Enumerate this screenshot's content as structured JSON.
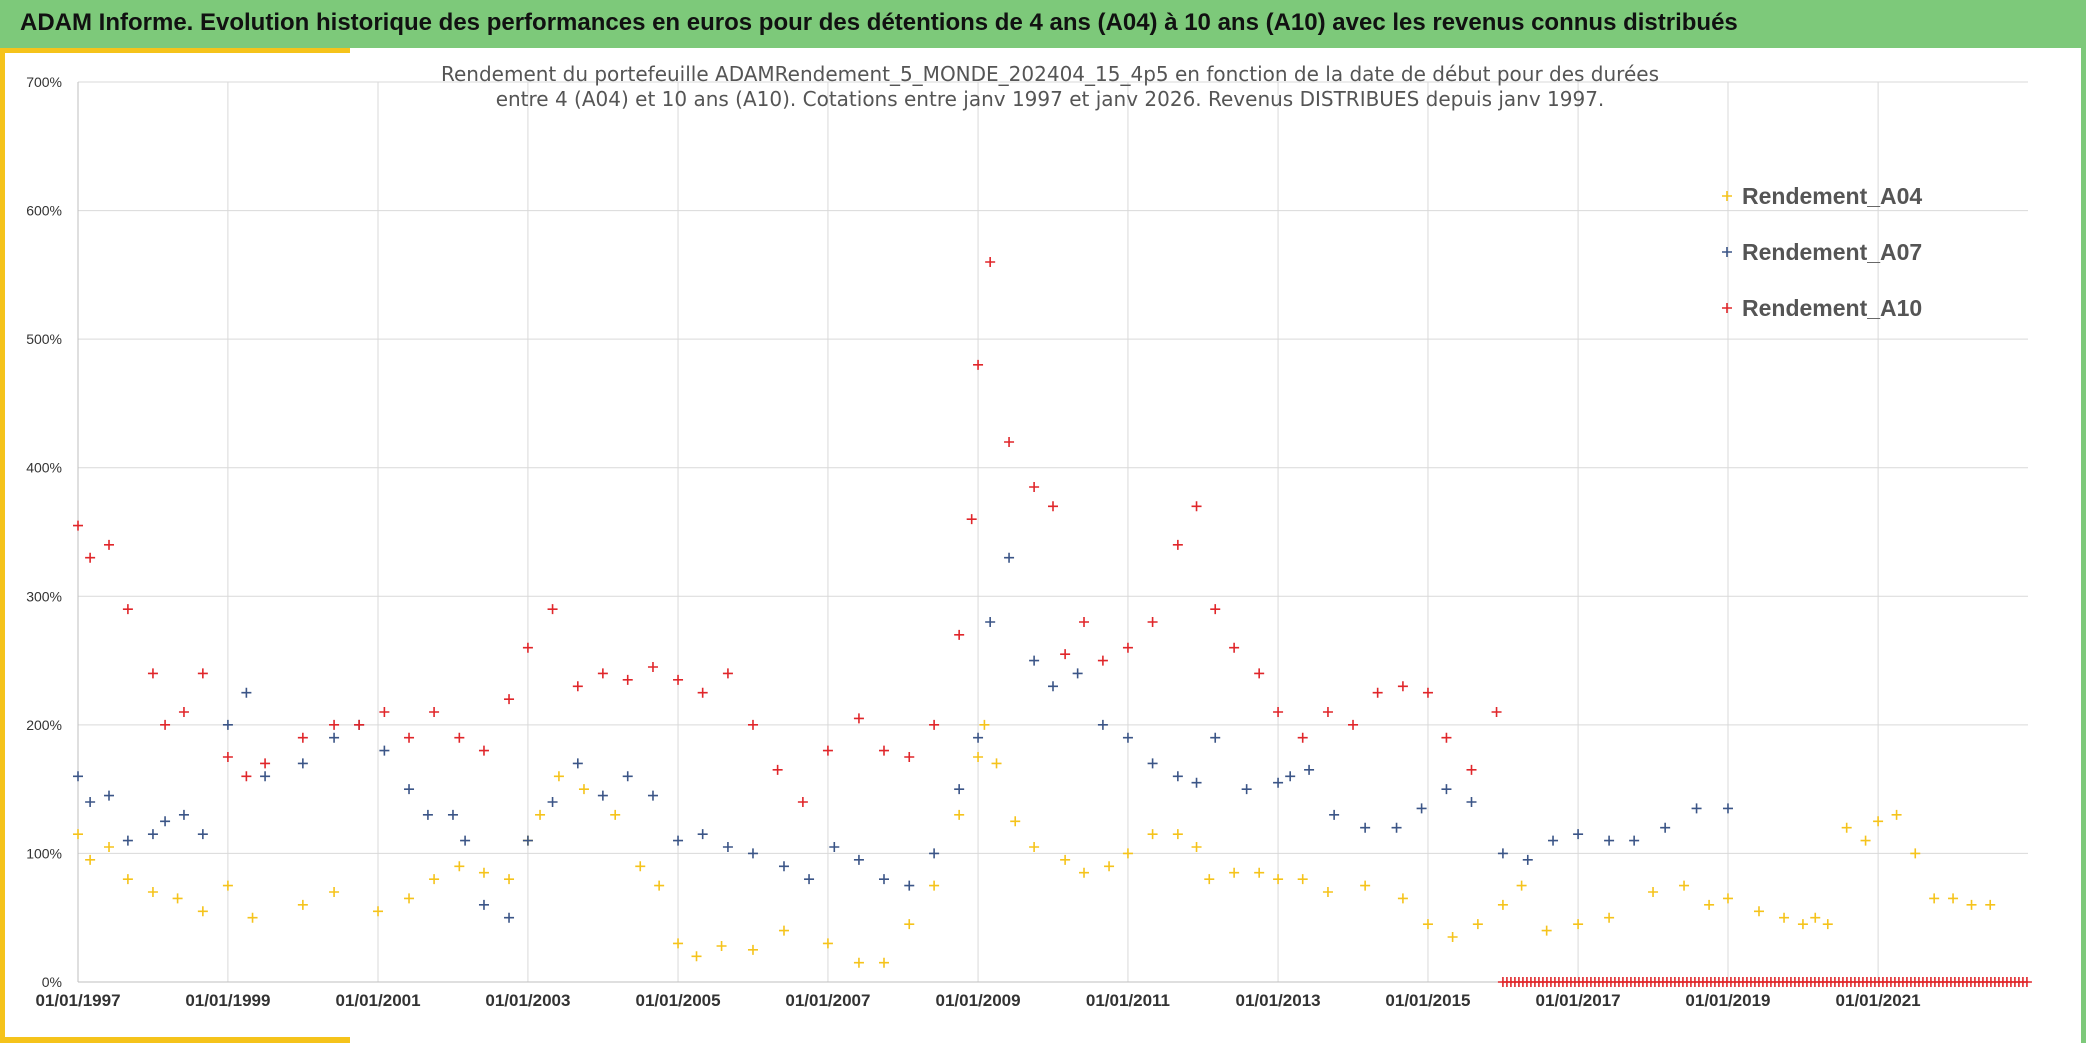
{
  "header": {
    "title": "ADAM Informe. Evolution historique des performances en euros pour des détentions de 4 ans (A04) à 10 ans (A10) avec les revenus connus distribués"
  },
  "colors": {
    "banner": "#7dc97a",
    "accent": "#f5c31b",
    "A04": "#f5c31b",
    "A07": "#3b5587",
    "A10": "#e0262a"
  },
  "chart_data": {
    "type": "scatter",
    "marker": "plus",
    "title_lines": [
      "Rendement du portefeuille ADAMRendement_5_MONDE_202404_15_4p5  en fonction de la date de début pour des durées",
      "entre 4 (A04) et 10 ans (A10). Cotations entre janv 1997 et janv 2026. Revenus DISTRIBUES depuis janv 1997."
    ],
    "x_range": [
      "1997-01-01",
      "2023-01-01"
    ],
    "x_ticks": [
      "01/01/1997",
      "01/01/1999",
      "01/01/2001",
      "01/01/2003",
      "01/01/2005",
      "01/01/2007",
      "01/01/2009",
      "01/01/2011",
      "01/01/2013",
      "01/01/2015",
      "01/01/2017",
      "01/01/2019",
      "01/01/2021"
    ],
    "ylim": [
      0,
      700
    ],
    "y_ticks": [
      "0%",
      "100%",
      "200%",
      "300%",
      "400%",
      "500%",
      "600%",
      "700%"
    ],
    "grid": true,
    "legend_position": "top-right",
    "series": [
      {
        "name": "Rendement_A04",
        "color": "#f5c31b",
        "x": [
          "1997-01-01",
          "1997-03-01",
          "1997-06-01",
          "1997-09-01",
          "1998-01-01",
          "1998-05-01",
          "1998-09-01",
          "1999-01-01",
          "1999-05-01",
          "2000-01-01",
          "2000-06-01",
          "2001-01-01",
          "2001-06-01",
          "2001-10-01",
          "2002-02-01",
          "2002-06-01",
          "2002-10-01",
          "2003-01-01",
          "2003-03-01",
          "2003-06-01",
          "2003-10-01",
          "2004-03-01",
          "2004-07-01",
          "2004-10-01",
          "2005-01-01",
          "2005-04-01",
          "2005-08-01",
          "2006-01-01",
          "2006-06-01",
          "2007-01-01",
          "2007-06-01",
          "2007-10-01",
          "2008-02-01",
          "2008-06-01",
          "2008-10-01",
          "2009-01-01",
          "2009-02-01",
          "2009-04-01",
          "2009-07-01",
          "2009-10-01",
          "2010-03-01",
          "2010-06-01",
          "2010-10-01",
          "2011-01-01",
          "2011-05-01",
          "2011-09-01",
          "2011-12-01",
          "2012-02-01",
          "2012-06-01",
          "2012-10-01",
          "2013-01-01",
          "2013-05-01",
          "2013-09-01",
          "2014-03-01",
          "2014-09-01",
          "2015-01-01",
          "2015-05-01",
          "2015-09-01",
          "2016-01-01",
          "2016-04-01",
          "2016-08-01",
          "2017-01-01",
          "2017-06-01",
          "2018-01-01",
          "2018-06-01",
          "2018-10-01",
          "2019-01-01",
          "2019-06-01",
          "2019-10-01",
          "2020-01-01",
          "2020-03-01",
          "2020-05-01",
          "2020-08-01",
          "2020-11-01",
          "2021-01-01",
          "2021-04-01",
          "2021-07-01",
          "2021-10-01",
          "2022-01-01",
          "2022-04-01",
          "2022-07-01"
        ],
        "y": [
          115,
          95,
          105,
          80,
          70,
          65,
          55,
          75,
          50,
          60,
          70,
          55,
          65,
          80,
          90,
          85,
          80,
          110,
          130,
          160,
          150,
          130,
          90,
          75,
          30,
          20,
          28,
          25,
          40,
          30,
          15,
          15,
          45,
          75,
          130,
          175,
          200,
          170,
          125,
          105,
          95,
          85,
          90,
          100,
          115,
          115,
          105,
          80,
          85,
          85,
          80,
          80,
          70,
          75,
          65,
          45,
          35,
          45,
          60,
          75,
          40,
          45,
          50,
          70,
          75,
          60,
          65,
          55,
          50,
          45,
          50,
          45,
          120,
          110,
          125,
          130,
          100,
          65,
          65,
          60,
          60
        ]
      },
      {
        "name": "Rendement_A07",
        "color": "#3b5587",
        "x": [
          "1997-01-01",
          "1997-03-01",
          "1997-06-01",
          "1997-09-01",
          "1998-01-01",
          "1998-03-01",
          "1998-06-01",
          "1998-09-01",
          "1999-01-01",
          "1999-04-01",
          "1999-07-01",
          "2000-01-01",
          "2000-06-01",
          "2000-10-01",
          "2001-02-01",
          "2001-06-01",
          "2001-09-01",
          "2002-01-01",
          "2002-03-01",
          "2002-06-01",
          "2002-10-01",
          "2003-01-01",
          "2003-05-01",
          "2003-09-01",
          "2004-01-01",
          "2004-05-01",
          "2004-09-01",
          "2005-01-01",
          "2005-05-01",
          "2005-09-01",
          "2006-01-01",
          "2006-06-01",
          "2006-10-01",
          "2007-02-01",
          "2007-06-01",
          "2007-10-01",
          "2008-02-01",
          "2008-06-01",
          "2008-10-01",
          "2009-01-01",
          "2009-03-01",
          "2009-06-01",
          "2009-10-01",
          "2010-01-01",
          "2010-05-01",
          "2010-09-01",
          "2011-01-01",
          "2011-05-01",
          "2011-09-01",
          "2011-12-01",
          "2012-03-01",
          "2012-08-01",
          "2013-01-01",
          "2013-03-01",
          "2013-06-01",
          "2013-10-01",
          "2014-03-01",
          "2014-08-01",
          "2014-12-01",
          "2015-04-01",
          "2015-08-01",
          "2016-01-01",
          "2016-05-01",
          "2016-09-01",
          "2017-01-01",
          "2017-06-01",
          "2017-10-01",
          "2018-03-01",
          "2018-08-01",
          "2019-01-01"
        ],
        "y": [
          160,
          140,
          145,
          110,
          115,
          125,
          130,
          115,
          200,
          225,
          160,
          170,
          190,
          200,
          180,
          150,
          130,
          130,
          110,
          60,
          50,
          110,
          140,
          170,
          145,
          160,
          145,
          110,
          115,
          105,
          100,
          90,
          80,
          105,
          95,
          80,
          75,
          100,
          150,
          190,
          280,
          330,
          250,
          230,
          240,
          200,
          190,
          170,
          160,
          155,
          190,
          150,
          155,
          160,
          165,
          130,
          120,
          120,
          135,
          150,
          140,
          100,
          95,
          110,
          115,
          110,
          110,
          120,
          135,
          135
        ]
      },
      {
        "name": "Rendement_A10",
        "color": "#e0262a",
        "x": [
          "1997-01-01",
          "1997-03-01",
          "1997-06-01",
          "1997-09-01",
          "1998-01-01",
          "1998-03-01",
          "1998-06-01",
          "1998-09-01",
          "1999-01-01",
          "1999-04-01",
          "1999-07-01",
          "2000-01-01",
          "2000-06-01",
          "2000-10-01",
          "2001-02-01",
          "2001-06-01",
          "2001-10-01",
          "2002-02-01",
          "2002-06-01",
          "2002-10-01",
          "2003-01-01",
          "2003-05-01",
          "2003-09-01",
          "2004-01-01",
          "2004-05-01",
          "2004-09-01",
          "2005-01-01",
          "2005-05-01",
          "2005-09-01",
          "2006-01-01",
          "2006-05-01",
          "2006-09-01",
          "2007-01-01",
          "2007-06-01",
          "2007-10-01",
          "2008-02-01",
          "2008-06-01",
          "2008-10-01",
          "2008-12-01",
          "2009-01-01",
          "2009-03-01",
          "2009-06-01",
          "2009-10-01",
          "2010-01-01",
          "2010-03-01",
          "2010-06-01",
          "2010-09-01",
          "2011-01-01",
          "2011-05-01",
          "2011-09-01",
          "2011-12-01",
          "2012-03-01",
          "2012-06-01",
          "2012-10-01",
          "2013-01-01",
          "2013-05-01",
          "2013-09-01",
          "2014-01-01",
          "2014-05-01",
          "2014-09-01",
          "2015-01-01",
          "2015-04-01",
          "2015-08-01",
          "2015-12-01"
        ],
        "y": [
          355,
          330,
          340,
          290,
          240,
          200,
          210,
          240,
          175,
          160,
          170,
          190,
          200,
          200,
          210,
          190,
          210,
          190,
          180,
          220,
          260,
          290,
          230,
          240,
          235,
          245,
          235,
          225,
          240,
          200,
          165,
          140,
          180,
          205,
          180,
          175,
          200,
          270,
          360,
          480,
          560,
          420,
          385,
          370,
          255,
          280,
          250,
          260,
          280,
          340,
          370,
          290,
          260,
          240,
          210,
          190,
          210,
          200,
          225,
          230,
          225,
          190,
          165,
          210
        ]
      }
    ],
    "baseline_marks": {
      "color": "#e0262a",
      "y": 0,
      "x_start": "2016-01-01",
      "x_end": "2023-01-01"
    }
  }
}
